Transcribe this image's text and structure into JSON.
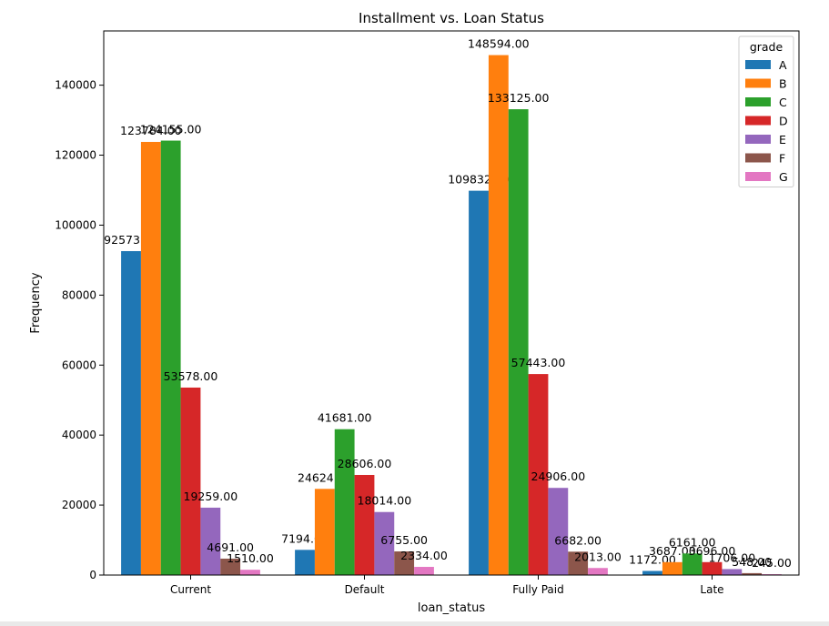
{
  "chart_data": {
    "type": "bar",
    "title": "Installment vs. Loan Status",
    "xlabel": "loan_status",
    "ylabel": "Frequency",
    "categories": [
      "Current",
      "Default",
      "Fully Paid",
      "Late"
    ],
    "ylim": [
      0,
      155500
    ],
    "yticks": [
      0,
      20000,
      40000,
      60000,
      80000,
      100000,
      120000,
      140000
    ],
    "legend": {
      "title": "grade",
      "placement": "upper-right"
    },
    "series": [
      {
        "name": "A",
        "color": "#1f77b4",
        "values": [
          92573,
          7194,
          109832,
          1172
        ]
      },
      {
        "name": "B",
        "color": "#ff7f0e",
        "values": [
          123784,
          24624,
          148594,
          3687
        ]
      },
      {
        "name": "C",
        "color": "#2ca02c",
        "values": [
          124155,
          41681,
          133125,
          6161
        ]
      },
      {
        "name": "D",
        "color": "#d62728",
        "values": [
          53578,
          28606,
          57443,
          3696
        ]
      },
      {
        "name": "E",
        "color": "#9467bd",
        "values": [
          19259,
          18014,
          24906,
          1706
        ]
      },
      {
        "name": "F",
        "color": "#8c564b",
        "values": [
          4691,
          6755,
          6682,
          548
        ]
      },
      {
        "name": "G",
        "color": "#e377c2",
        "values": [
          1510,
          2334,
          2013,
          245
        ]
      }
    ],
    "data_label_format": "two-decimals"
  }
}
